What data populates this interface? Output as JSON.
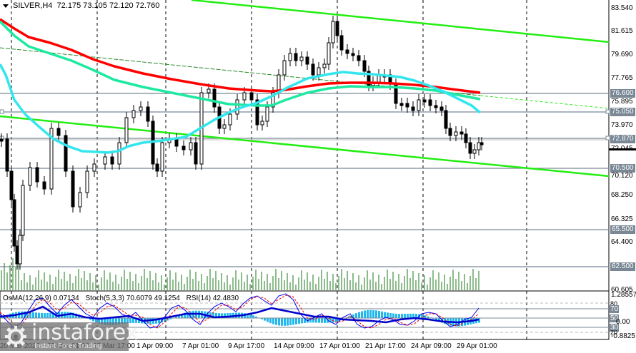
{
  "header": {
    "symbol": "SILVER,H4",
    "ohlc": "72.175 73.105 72.120 72.760"
  },
  "indicators": {
    "osma": "OsMA(12,26,9) 0.07134",
    "stoch": "Stoch(5,3,3) 70.6079 49.1254",
    "rsi": "RSI(14) 42.4830"
  },
  "price_axis": [
    "83.540",
    "81.615",
    "79.690",
    "77.765",
    "75.895",
    "73.970",
    "72.045",
    "70.120",
    "68.250",
    "66.325",
    "64.400",
    "60.605"
  ],
  "levels": [
    "76.600",
    "75.050",
    "72.870",
    "70.500",
    "65.500",
    "62.500"
  ],
  "osc_axis": {
    "top": "1.28557",
    "bottom": "-0.8825",
    "mid": "0.00",
    "levels": [
      "80",
      "70",
      "50",
      "30",
      "20"
    ]
  },
  "time_axis": [
    "20 Mar 2026",
    "25 Mar 01:00",
    "27 Mar 17:00",
    "1 Apr 09:00",
    "7 Apr 01:00",
    "9 Apr 17:00",
    "14 Apr 09:00",
    "17 Apr 01:00",
    "21 Apr 17:00",
    "24 Apr 09:00",
    "29 Apr 01:00"
  ],
  "logo": {
    "name": "instaforex",
    "tagline": "Instant Forex Trading"
  },
  "colors": {
    "ema200": "#ff0000",
    "ema144": "#1de9a0",
    "ema50": "#33e6ee",
    "channel": "#22ee11",
    "levels": "#7a8896",
    "volume": "#1a7a1a",
    "osma": "#22b8ee",
    "stoch_main": "#0000ee",
    "stoch_signal": "#ee0000",
    "rsi": "#0000cc"
  },
  "chart_data": {
    "type": "candlestick",
    "title": "SILVER,H4 72.175 73.105 72.120 72.760",
    "symbol": "SILVER",
    "timeframe": "H4",
    "last_ohlc": {
      "open": 72.175,
      "high": 73.105,
      "low": 72.12,
      "close": 72.76
    },
    "x": [
      "20 Mar 2026",
      "25 Mar 01:00",
      "27 Mar 17:00",
      "1 Apr 09:00",
      "7 Apr 01:00",
      "9 Apr 17:00",
      "14 Apr 09:00",
      "17 Apr 01:00",
      "21 Apr 17:00",
      "24 Apr 09:00",
      "29 Apr 01:00"
    ],
    "ylim": [
      60.605,
      84.5
    ],
    "yticks": [
      83.54,
      81.615,
      79.69,
      77.765,
      75.895,
      73.97,
      72.045,
      70.12,
      68.25,
      66.325,
      64.4,
      60.605
    ],
    "horizontal_levels": [
      76.6,
      75.05,
      72.87,
      70.5,
      65.5,
      62.5
    ],
    "series": [
      {
        "name": "EMA200 (red)",
        "approx_values": [
          82.3,
          79.5,
          78.0,
          77.2,
          76.6,
          76.5,
          76.8,
          77.3,
          77.6,
          77.2,
          76.6
        ]
      },
      {
        "name": "EMA144 (green)",
        "approx_values": [
          82.0,
          78.0,
          76.3,
          75.5,
          75.3,
          75.4,
          76.0,
          76.8,
          77.1,
          76.9,
          76.1
        ]
      },
      {
        "name": "EMA50 (cyan)",
        "approx_values": [
          80.5,
          74.0,
          72.6,
          72.8,
          73.0,
          74.0,
          76.5,
          78.0,
          77.8,
          76.5,
          75.0
        ]
      },
      {
        "name": "Channel upper",
        "approx_values": [
          84.6,
          84.4,
          84.1,
          83.7,
          83.3,
          83.0,
          82.6,
          82.3,
          82.0,
          81.6,
          81.2
        ]
      },
      {
        "name": "Channel lower",
        "approx_values": [
          75.2,
          74.6,
          74.1,
          73.6,
          73.1,
          72.7,
          72.3,
          71.9,
          71.5,
          71.0,
          70.6
        ]
      }
    ],
    "candles_approx_close": [
      73.0,
      67.5,
      72.5,
      70.5,
      74.5,
      73.5,
      79.0,
      82.5,
      77.5,
      75.5,
      72.8
    ],
    "subplot": {
      "indicators": [
        "OsMA(12,26,9) 0.07134",
        "Stoch(5,3,3) 70.6079 49.1254",
        "RSI(14) 42.4830"
      ],
      "ylim": [
        -0.8825,
        1.28557
      ],
      "levels": [
        80,
        70,
        50,
        30,
        20
      ]
    }
  }
}
